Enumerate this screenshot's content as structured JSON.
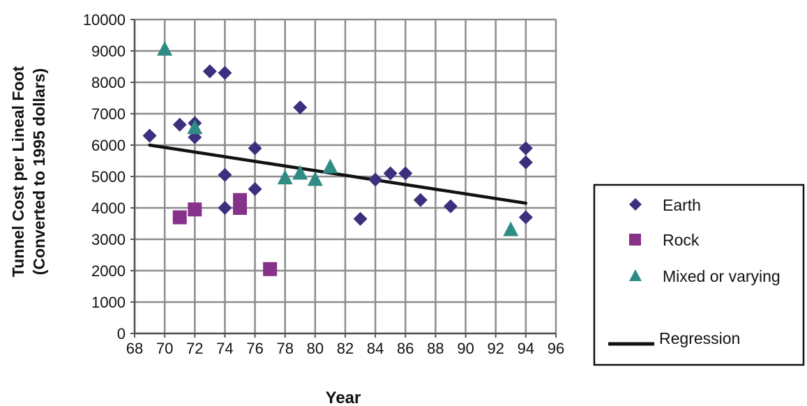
{
  "chart_data": {
    "type": "scatter",
    "xlabel": "Year",
    "ylabel": "Tunnel Cost per Lineal Foot",
    "ylabel2": "(Converted to 1995 dollars)",
    "xlim": [
      68,
      96
    ],
    "ylim": [
      0,
      10000
    ],
    "x_ticks": [
      "68",
      "70",
      "72",
      "74",
      "76",
      "78",
      "80",
      "82",
      "84",
      "86",
      "88",
      "90",
      "92",
      "94",
      "96"
    ],
    "y_ticks": [
      "0",
      "1000",
      "2000",
      "3000",
      "4000",
      "5000",
      "6000",
      "7000",
      "8000",
      "9000",
      "10000"
    ],
    "grid": true,
    "legend_position": "right",
    "series": [
      {
        "name": "Earth",
        "marker": "diamond",
        "color": "#3b2f7e",
        "points": [
          [
            69,
            6300
          ],
          [
            71,
            6650
          ],
          [
            72,
            6700
          ],
          [
            72,
            6250
          ],
          [
            73,
            8350
          ],
          [
            74,
            8300
          ],
          [
            74,
            5050
          ],
          [
            74,
            4000
          ],
          [
            76,
            5900
          ],
          [
            76,
            4600
          ],
          [
            79,
            7200
          ],
          [
            83,
            3650
          ],
          [
            84,
            4900
          ],
          [
            85,
            5100
          ],
          [
            86,
            5100
          ],
          [
            87,
            4250
          ],
          [
            89,
            4050
          ],
          [
            94,
            5900
          ],
          [
            94,
            5450
          ],
          [
            94,
            3700
          ]
        ]
      },
      {
        "name": "Rock",
        "marker": "square",
        "color": "#86318a",
        "points": [
          [
            71,
            3700
          ],
          [
            72,
            3950
          ],
          [
            75,
            4250
          ],
          [
            75,
            4000
          ],
          [
            77,
            2050
          ]
        ]
      },
      {
        "name": "Mixed or varying",
        "marker": "triangle",
        "color": "#2f8c85",
        "points": [
          [
            70,
            9050
          ],
          [
            72,
            6550
          ],
          [
            78,
            4950
          ],
          [
            79,
            5100
          ],
          [
            80,
            4900
          ],
          [
            81,
            5300
          ],
          [
            93,
            3300
          ]
        ]
      },
      {
        "name": "Regression",
        "type": "line",
        "color": "#111111",
        "points": [
          [
            69,
            6000
          ],
          [
            94,
            4150
          ]
        ]
      }
    ]
  }
}
